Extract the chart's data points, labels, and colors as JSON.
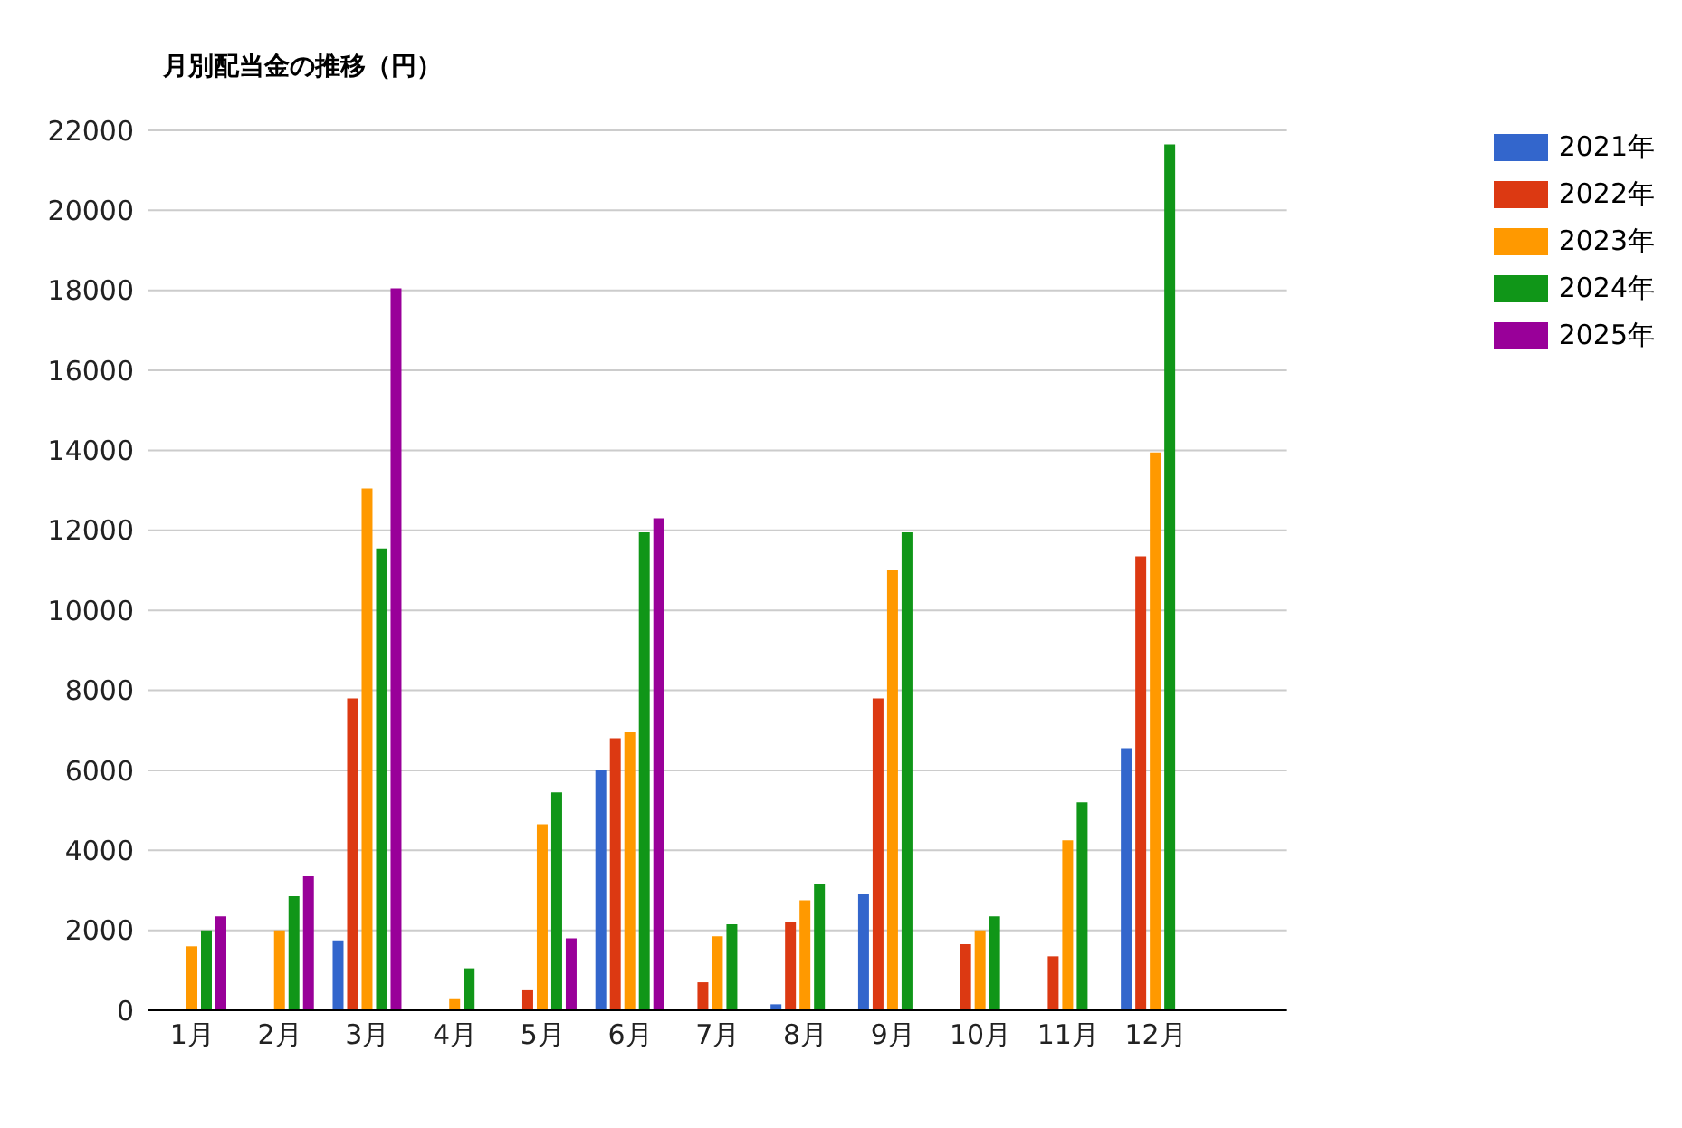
{
  "chart_data": {
    "type": "bar",
    "title": "月別配当金の推移（円）",
    "categories": [
      "1月",
      "2月",
      "3月",
      "4月",
      "5月",
      "6月",
      "7月",
      "8月",
      "9月",
      "10月",
      "11月",
      "12月",
      null
    ],
    "series": [
      {
        "name": "2021年",
        "color": "#3366cc",
        "values": [
          null,
          null,
          1750,
          null,
          null,
          6000,
          null,
          150,
          2900,
          null,
          null,
          6550,
          null
        ]
      },
      {
        "name": "2022年",
        "color": "#dc3912",
        "values": [
          null,
          null,
          7800,
          null,
          500,
          6800,
          700,
          2200,
          7800,
          1650,
          1350,
          11350,
          null
        ]
      },
      {
        "name": "2023年",
        "color": "#ff9900",
        "values": [
          1600,
          2000,
          13050,
          300,
          4650,
          6950,
          1850,
          2750,
          11000,
          2000,
          4250,
          13950,
          null
        ]
      },
      {
        "name": "2024年",
        "color": "#109618",
        "values": [
          2000,
          2850,
          11550,
          1050,
          5450,
          11950,
          2150,
          3150,
          11950,
          2350,
          5200,
          21650,
          null
        ]
      },
      {
        "name": "2025年",
        "color": "#990099",
        "values": [
          2350,
          3350,
          18050,
          null,
          1800,
          12300,
          null,
          null,
          null,
          null,
          null,
          null,
          null
        ]
      }
    ],
    "ylim": [
      0,
      22000
    ],
    "yticks": [
      0,
      2000,
      4000,
      6000,
      8000,
      10000,
      12000,
      14000,
      16000,
      18000,
      20000,
      22000
    ],
    "grid": "y",
    "legend": "right"
  }
}
